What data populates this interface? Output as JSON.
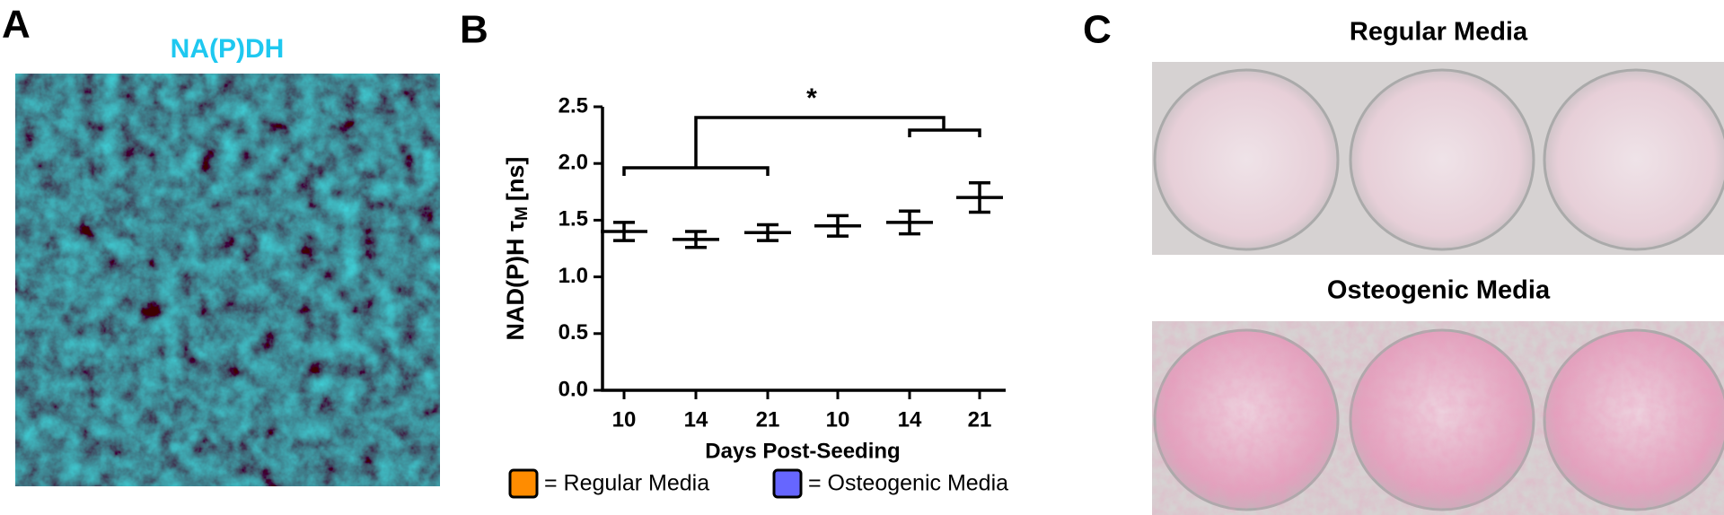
{
  "panel_a": {
    "label": "A",
    "title": "NA(P)DH"
  },
  "panel_c": {
    "label": "C",
    "top_title": "Regular Media",
    "bottom_title": "Osteogenic Media"
  },
  "chart_data": {
    "type": "dot",
    "panel_label": "B",
    "annotation": "*",
    "x_label": "Days Post-Seeding",
    "y_label": [
      "NAD(P)H τ",
      "M",
      "[ns]"
    ],
    "categories": [
      "10",
      "14",
      "21",
      "10",
      "14",
      "21"
    ],
    "series": [
      {
        "name": "= Regular Media",
        "color": "#ff8c00",
        "values": [
          1.4,
          1.33,
          1.39,
          null,
          null,
          null
        ],
        "errors": [
          0.08,
          0.07,
          0.07,
          null,
          null,
          null
        ]
      },
      {
        "name": "= Osteogenic Media",
        "color": "#6666ff",
        "values": [
          null,
          null,
          null,
          1.45,
          1.48,
          1.7
        ],
        "errors": [
          null,
          null,
          null,
          0.09,
          0.1,
          0.13
        ]
      }
    ],
    "ylim": [
      0,
      2.5
    ],
    "yticks": [
      {
        "value": 0,
        "label": "0.0"
      },
      0.5,
      {
        "value": 1,
        "label": "1.0"
      },
      1.5,
      {
        "value": 2,
        "label": "2.0"
      },
      2.5
    ]
  }
}
